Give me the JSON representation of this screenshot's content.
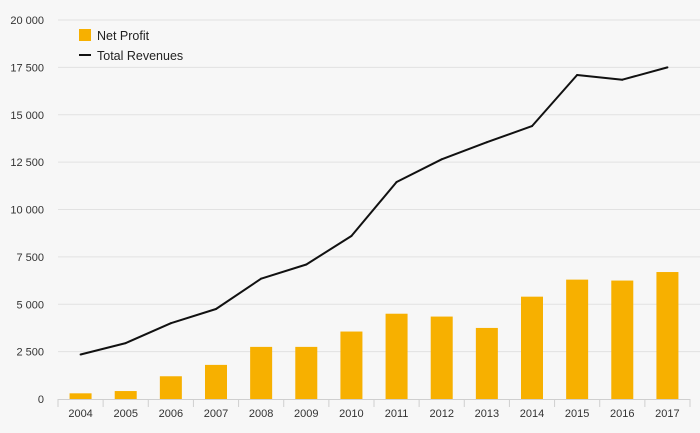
{
  "chart_data": {
    "type": "bar+line",
    "title": "",
    "xlabel": "",
    "ylabel": "",
    "categories": [
      "2004",
      "2005",
      "2006",
      "2007",
      "2008",
      "2009",
      "2010",
      "2011",
      "2012",
      "2013",
      "2014",
      "2015",
      "2016",
      "2017"
    ],
    "series": [
      {
        "name": "Net Profit",
        "type": "bar",
        "color": "#f7b000",
        "values": [
          300,
          420,
          1200,
          1800,
          2750,
          2750,
          3560,
          4500,
          4350,
          3750,
          5400,
          6300,
          6250,
          6700
        ]
      },
      {
        "name": "Total Revenues",
        "type": "line",
        "color": "#111111",
        "values": [
          2350,
          2950,
          4000,
          4750,
          6350,
          7100,
          8600,
          11450,
          12650,
          13550,
          14400,
          17100,
          16850,
          17500
        ]
      }
    ],
    "ylim": [
      0,
      20000
    ],
    "yticks": [
      0,
      2500,
      5000,
      7500,
      10000,
      12500,
      15000,
      17500,
      20000
    ],
    "ytick_labels": [
      "0",
      "2 500",
      "5 000",
      "7 500",
      "10 000",
      "12 500",
      "15 000",
      "17 500",
      "20 000"
    ],
    "grid": true,
    "legend_position": "top-left",
    "legend": [
      {
        "label": "Net Profit",
        "symbol": "square",
        "color": "#f7b000"
      },
      {
        "label": "Total Revenues",
        "symbol": "line",
        "color": "#111111"
      }
    ],
    "grid_color": "#e2e2e2",
    "axis_color": "#cfcfcf"
  }
}
